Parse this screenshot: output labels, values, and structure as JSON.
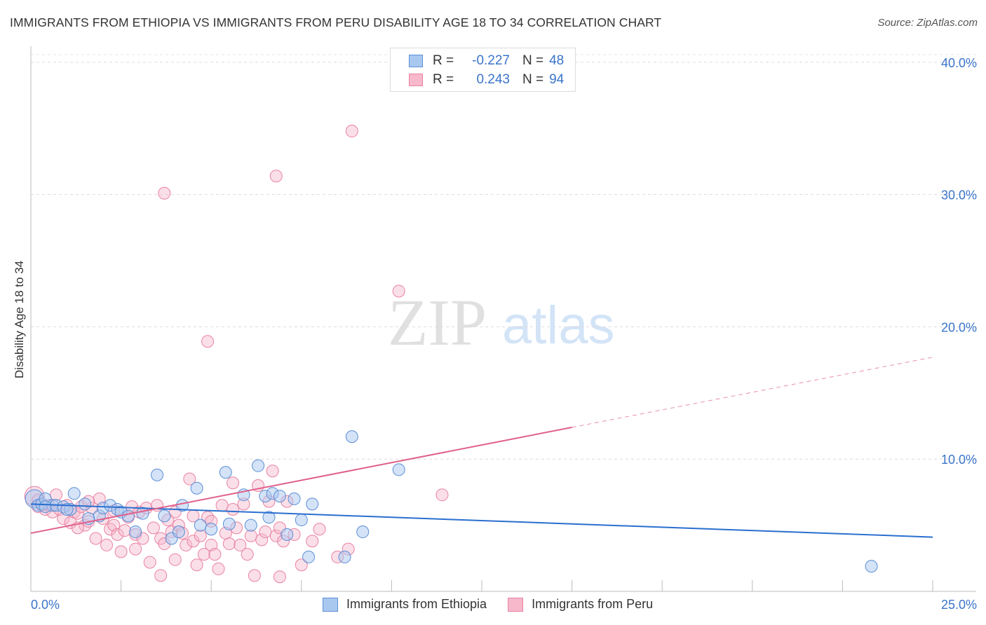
{
  "title": "IMMIGRANTS FROM ETHIOPIA VS IMMIGRANTS FROM PERU DISABILITY AGE 18 TO 34 CORRELATION CHART",
  "source": "Source: ZipAtlas.com",
  "watermark": {
    "zip": "ZIP",
    "atlas": "atlas"
  },
  "colors": {
    "ethiopia_fill": "#a9c8f0",
    "ethiopia_stroke": "#5b8fd6",
    "ethiopia_line": "#2a6fcf",
    "peru_fill": "#f7b8cb",
    "peru_stroke": "#e882a2",
    "peru_line": "#e0608a",
    "axis_text": "#3a74c9"
  },
  "legend": {
    "rows": [
      {
        "r_label": "R =",
        "r_value": "-0.227",
        "n_label": "N =",
        "n_value": "48"
      },
      {
        "r_label": "R =",
        "r_value": "0.243",
        "n_label": "N =",
        "n_value": "94"
      }
    ]
  },
  "bottom_legend": {
    "ethiopia": "Immigrants from Ethiopia",
    "peru": "Immigrants from Peru"
  },
  "chart_data": {
    "type": "scatter",
    "title": "IMMIGRANTS FROM ETHIOPIA VS IMMIGRANTS FROM PERU DISABILITY AGE 18 TO 34 CORRELATION CHART",
    "xlabel": "",
    "ylabel": "Disability Age 18 to 34",
    "xlim": [
      0,
      25
    ],
    "ylim": [
      0,
      41
    ],
    "x_tick_labels": [
      "0.0%",
      "25.0%"
    ],
    "y_ticks": [
      10,
      20,
      30,
      40
    ],
    "y_tick_labels": [
      "10.0%",
      "20.0%",
      "30.0%",
      "40.0%"
    ],
    "grid": true,
    "series": [
      {
        "name": "Immigrants from Ethiopia",
        "r": -0.227,
        "n": 48,
        "trend": {
          "x0": 0,
          "y0": 6.6,
          "x1": 25,
          "y1": 4.1
        },
        "points": [
          [
            0.1,
            7.0
          ],
          [
            0.2,
            6.5
          ],
          [
            0.3,
            6.6
          ],
          [
            0.4,
            7.0
          ],
          [
            0.6,
            6.5
          ],
          [
            0.7,
            6.5
          ],
          [
            0.9,
            6.4
          ],
          [
            1.1,
            6.2
          ],
          [
            1.2,
            7.4
          ],
          [
            1.5,
            6.6
          ],
          [
            1.9,
            5.7
          ],
          [
            2.0,
            6.3
          ],
          [
            2.2,
            6.5
          ],
          [
            2.4,
            6.2
          ],
          [
            2.5,
            6.0
          ],
          [
            2.7,
            5.7
          ],
          [
            3.5,
            8.8
          ],
          [
            3.9,
            4.0
          ],
          [
            4.2,
            6.5
          ],
          [
            4.6,
            7.8
          ],
          [
            4.7,
            5.0
          ],
          [
            5.0,
            4.7
          ],
          [
            5.4,
            9.0
          ],
          [
            5.5,
            5.1
          ],
          [
            5.9,
            7.3
          ],
          [
            6.1,
            5.0
          ],
          [
            6.3,
            9.5
          ],
          [
            6.5,
            7.2
          ],
          [
            6.6,
            5.6
          ],
          [
            6.7,
            7.4
          ],
          [
            6.9,
            7.2
          ],
          [
            7.1,
            4.3
          ],
          [
            7.3,
            7.0
          ],
          [
            7.5,
            5.4
          ],
          [
            7.7,
            2.6
          ],
          [
            7.8,
            6.6
          ],
          [
            8.7,
            2.6
          ],
          [
            8.9,
            11.7
          ],
          [
            9.2,
            4.5
          ],
          [
            10.2,
            9.2
          ],
          [
            23.3,
            1.9
          ],
          [
            1.6,
            5.5
          ],
          [
            2.9,
            4.5
          ],
          [
            3.1,
            5.9
          ],
          [
            3.7,
            5.7
          ],
          [
            4.1,
            4.5
          ],
          [
            0.4,
            6.4
          ],
          [
            1.0,
            6.2
          ]
        ]
      },
      {
        "name": "Immigrants from Peru",
        "r": 0.243,
        "n": 94,
        "trend": {
          "x0": 0,
          "y0": 4.4,
          "x1": 15,
          "y1": 12.4,
          "dashed_to_x": 25,
          "dashed_to_y": 17.7
        },
        "points": [
          [
            0.1,
            7.2
          ],
          [
            0.2,
            6.9
          ],
          [
            0.3,
            6.5
          ],
          [
            0.4,
            6.2
          ],
          [
            0.5,
            6.5
          ],
          [
            0.6,
            6.0
          ],
          [
            0.7,
            7.3
          ],
          [
            0.8,
            6.2
          ],
          [
            0.9,
            5.5
          ],
          [
            1.0,
            6.5
          ],
          [
            1.1,
            5.2
          ],
          [
            1.2,
            6.0
          ],
          [
            1.3,
            5.9
          ],
          [
            1.4,
            6.4
          ],
          [
            1.5,
            5.0
          ],
          [
            1.6,
            5.3
          ],
          [
            1.7,
            6.3
          ],
          [
            1.8,
            4.0
          ],
          [
            1.9,
            7.0
          ],
          [
            2.0,
            5.5
          ],
          [
            2.1,
            3.5
          ],
          [
            2.2,
            4.7
          ],
          [
            2.3,
            5.0
          ],
          [
            2.4,
            4.3
          ],
          [
            2.5,
            3.0
          ],
          [
            2.6,
            4.6
          ],
          [
            2.7,
            5.6
          ],
          [
            2.8,
            6.4
          ],
          [
            2.9,
            4.3
          ],
          [
            3.0,
            6.0
          ],
          [
            3.1,
            4.0
          ],
          [
            3.2,
            6.3
          ],
          [
            3.3,
            2.2
          ],
          [
            3.4,
            4.8
          ],
          [
            3.5,
            6.5
          ],
          [
            3.6,
            4.0
          ],
          [
            3.7,
            3.6
          ],
          [
            3.8,
            5.4
          ],
          [
            3.9,
            4.5
          ],
          [
            4.0,
            6.0
          ],
          [
            4.1,
            5.0
          ],
          [
            4.2,
            4.4
          ],
          [
            4.3,
            3.5
          ],
          [
            4.4,
            8.5
          ],
          [
            4.5,
            3.8
          ],
          [
            4.6,
            2.0
          ],
          [
            4.7,
            4.2
          ],
          [
            4.8,
            2.8
          ],
          [
            4.9,
            5.6
          ],
          [
            5.0,
            3.5
          ],
          [
            5.1,
            2.8
          ],
          [
            5.2,
            1.7
          ],
          [
            5.3,
            6.5
          ],
          [
            5.4,
            4.4
          ],
          [
            5.5,
            3.6
          ],
          [
            5.6,
            8.2
          ],
          [
            5.7,
            4.8
          ],
          [
            5.8,
            3.5
          ],
          [
            5.9,
            6.6
          ],
          [
            6.0,
            2.8
          ],
          [
            6.1,
            4.2
          ],
          [
            6.2,
            1.2
          ],
          [
            6.3,
            8.0
          ],
          [
            6.4,
            3.9
          ],
          [
            6.5,
            4.5
          ],
          [
            6.6,
            6.8
          ],
          [
            6.7,
            9.1
          ],
          [
            6.8,
            4.2
          ],
          [
            6.9,
            4.8
          ],
          [
            7.0,
            3.8
          ],
          [
            7.1,
            6.8
          ],
          [
            7.3,
            4.3
          ],
          [
            7.5,
            2.0
          ],
          [
            7.8,
            3.8
          ],
          [
            8.0,
            4.7
          ],
          [
            8.5,
            2.6
          ],
          [
            8.8,
            3.2
          ],
          [
            8.9,
            34.8
          ],
          [
            10.2,
            22.7
          ],
          [
            11.4,
            7.3
          ],
          [
            3.7,
            30.1
          ],
          [
            6.8,
            31.4
          ],
          [
            4.9,
            18.9
          ],
          [
            0.2,
            6.4
          ],
          [
            1.3,
            4.8
          ],
          [
            1.6,
            6.8
          ],
          [
            2.3,
            6.1
          ],
          [
            2.9,
            3.2
          ],
          [
            3.6,
            1.2
          ],
          [
            4.0,
            2.4
          ],
          [
            4.5,
            5.7
          ],
          [
            5.0,
            5.3
          ],
          [
            5.6,
            6.2
          ],
          [
            6.9,
            1.1
          ]
        ]
      }
    ]
  }
}
